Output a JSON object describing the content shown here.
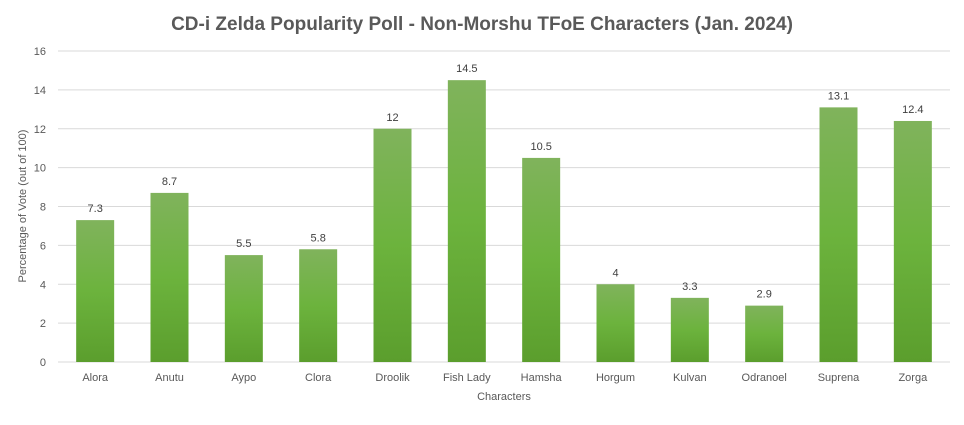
{
  "chart_data": {
    "type": "bar",
    "title": "CD-i Zelda Popularity Poll - Non-Morshu TFoE Characters (Jan. 2024)",
    "xlabel": "Characters",
    "ylabel": "Percentage of Vote (out of 100)",
    "ylim": [
      0,
      16
    ],
    "yticks": [
      "0",
      "2",
      "4",
      "6",
      "8",
      "10",
      "12",
      "14",
      "16"
    ],
    "grid": true,
    "categories": [
      "Alora",
      "Anutu",
      "Aypo",
      "Clora",
      "Droolik",
      "Fish Lady",
      "Hamsha",
      "Horgum",
      "Kulvan",
      "Odranoel",
      "Suprena",
      "Zorga"
    ],
    "values": [
      7.3,
      8.7,
      5.5,
      5.8,
      12,
      14.5,
      10.5,
      4,
      3.3,
      2.9,
      13.1,
      12.4
    ],
    "labels": [
      "7.3",
      "8.7",
      "5.5",
      "5.8",
      "12",
      "14.5",
      "10.5",
      "4",
      "3.3",
      "2.9",
      "13.1",
      "12.4"
    ],
    "colors": {
      "bar_top": "#80b35c",
      "bar_bottom": "#5b9e2d",
      "grid": "#d9d9d9",
      "text": "#595959"
    }
  }
}
